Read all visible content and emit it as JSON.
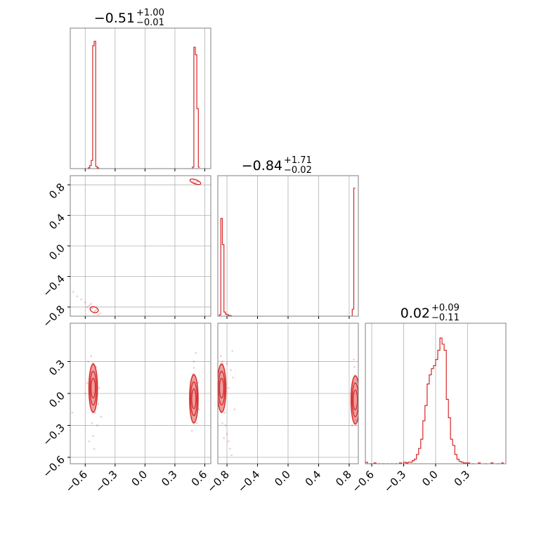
{
  "chart_data": {
    "type": "corner",
    "color": "#d62728",
    "grid": true,
    "params": [
      {
        "range": [
          -0.75,
          0.66
        ],
        "ticks": [
          -0.6,
          -0.3,
          0.0,
          0.3,
          0.6
        ],
        "tick_labels": [
          "−0.6",
          "−0.3",
          "0.0",
          "0.3",
          "0.6"
        ],
        "title": {
          "median": "−0.51",
          "plus": "+1.00",
          "minus": "−0.01"
        }
      },
      {
        "range": [
          -0.92,
          0.92
        ],
        "ticks": [
          -0.8,
          -0.4,
          0.0,
          0.4,
          0.8
        ],
        "tick_labels": [
          "−0.8",
          "−0.4",
          "0.0",
          "0.4",
          "0.8"
        ],
        "title": {
          "median": "−0.84",
          "plus": "+1.71",
          "minus": "−0.02"
        }
      },
      {
        "range": [
          -0.66,
          0.66
        ],
        "ticks": [
          -0.6,
          -0.3,
          0.0,
          0.3
        ],
        "tick_labels": [
          "−0.6",
          "−0.3",
          "0.0",
          "0.3"
        ],
        "title": {
          "median": "0.02",
          "plus": "+0.09",
          "minus": "−0.11"
        }
      }
    ],
    "histograms": [
      {
        "param": 0,
        "bins": [
          [
            -0.57,
            0.005
          ],
          [
            -0.555,
            0.02
          ],
          [
            -0.54,
            0.055
          ],
          [
            -0.525,
            0.82
          ],
          [
            -0.51,
            0.85
          ],
          [
            -0.495,
            0.015
          ],
          [
            -0.48,
            0.005
          ],
          [
            0.475,
            0.01
          ],
          [
            0.49,
            0.81
          ],
          [
            0.505,
            0.76
          ],
          [
            0.52,
            0.4
          ],
          [
            0.535,
            0.01
          ]
        ],
        "bin_width": 0.015,
        "ymax": 0.9
      },
      {
        "param": 1,
        "bins": [
          [
            -0.9,
            0.01
          ],
          [
            -0.88,
            0.71
          ],
          [
            -0.86,
            0.52
          ],
          [
            -0.84,
            0.03
          ],
          [
            -0.82,
            0.015
          ],
          [
            -0.8,
            0.01
          ],
          [
            -0.78,
            0.005
          ],
          [
            -0.76,
            0.003
          ],
          [
            0.84,
            0.05
          ],
          [
            0.86,
            0.93
          ]
        ],
        "bin_width": 0.02,
        "ymax": 0.98
      },
      {
        "param": 2,
        "bins": [
          [
            -0.66,
            0.01
          ],
          [
            -0.62,
            0.0
          ],
          [
            -0.58,
            0.005
          ],
          [
            -0.54,
            0.0
          ],
          [
            -0.5,
            0.0
          ],
          [
            -0.46,
            0.0
          ],
          [
            -0.42,
            0.0
          ],
          [
            -0.38,
            0.0
          ],
          [
            -0.34,
            0.005
          ],
          [
            -0.3,
            0.01
          ],
          [
            -0.28,
            0.005
          ],
          [
            -0.26,
            0.01
          ],
          [
            -0.24,
            0.01
          ],
          [
            -0.22,
            0.02
          ],
          [
            -0.2,
            0.03
          ],
          [
            -0.18,
            0.06
          ],
          [
            -0.16,
            0.1
          ],
          [
            -0.14,
            0.16
          ],
          [
            -0.12,
            0.28
          ],
          [
            -0.1,
            0.38
          ],
          [
            -0.08,
            0.52
          ],
          [
            -0.06,
            0.58
          ],
          [
            -0.04,
            0.62
          ],
          [
            -0.02,
            0.64
          ],
          [
            0.0,
            0.68
          ],
          [
            0.02,
            0.74
          ],
          [
            0.04,
            0.82
          ],
          [
            0.06,
            0.78
          ],
          [
            0.08,
            0.74
          ],
          [
            0.1,
            0.42
          ],
          [
            0.12,
            0.3
          ],
          [
            0.14,
            0.16
          ],
          [
            0.16,
            0.12
          ],
          [
            0.18,
            0.06
          ],
          [
            0.2,
            0.03
          ],
          [
            0.22,
            0.015
          ],
          [
            0.24,
            0.01
          ],
          [
            0.26,
            0.005
          ],
          [
            0.28,
            0.005
          ],
          [
            0.3,
            0.005
          ],
          [
            0.34,
            0.0
          ],
          [
            0.4,
            0.005
          ],
          [
            0.46,
            0.0
          ],
          [
            0.52,
            0.005
          ],
          [
            0.58,
            0.0
          ],
          [
            0.62,
            0.005
          ]
        ],
        "bin_width": 0.02,
        "ymax": 0.88
      }
    ],
    "scatter_2d": [
      {
        "x_param": 0,
        "y_param": 1,
        "points": [
          [
            0.48,
            0.84
          ],
          [
            0.5,
            0.83
          ],
          [
            0.52,
            0.85
          ],
          [
            0.49,
            0.86
          ],
          [
            0.51,
            0.82
          ],
          [
            0.53,
            0.84
          ],
          [
            -0.52,
            -0.8
          ],
          [
            -0.5,
            -0.85
          ],
          [
            -0.53,
            -0.82
          ],
          [
            -0.49,
            -0.84
          ],
          [
            -0.51,
            -0.87
          ],
          [
            -0.56,
            -0.78
          ],
          [
            -0.6,
            -0.74
          ],
          [
            -0.64,
            -0.7
          ],
          [
            -0.68,
            -0.66
          ],
          [
            -0.72,
            -0.6
          ],
          [
            -0.45,
            -0.88
          ],
          [
            -0.47,
            -0.9
          ],
          [
            -0.58,
            -0.8
          ],
          [
            -0.54,
            -0.76
          ]
        ]
      },
      {
        "x_param": 0,
        "y_param": 2,
        "points": [
          [
            -0.53,
            0.2
          ],
          [
            -0.52,
            0.28
          ],
          [
            -0.54,
            0.35
          ],
          [
            -0.51,
            0.12
          ],
          [
            -0.55,
            -0.05
          ],
          [
            -0.5,
            -0.18
          ],
          [
            -0.53,
            -0.28
          ],
          [
            -0.52,
            -0.4
          ],
          [
            -0.56,
            -0.45
          ],
          [
            -0.48,
            -0.3
          ],
          [
            -0.58,
            0.1
          ],
          [
            -0.49,
            0.25
          ],
          [
            -0.47,
            -0.1
          ],
          [
            -0.6,
            0.0
          ],
          [
            -0.44,
            -0.22
          ],
          [
            -0.57,
            0.3
          ],
          [
            -0.46,
            0.05
          ],
          [
            -0.51,
            -0.52
          ],
          [
            -0.73,
            -0.18
          ],
          [
            0.49,
            0.3
          ],
          [
            0.51,
            0.38
          ],
          [
            0.48,
            0.18
          ],
          [
            0.52,
            -0.28
          ],
          [
            0.5,
            -0.2
          ],
          [
            0.47,
            -0.35
          ],
          [
            0.53,
            0.1
          ],
          [
            0.46,
            -0.05
          ],
          [
            0.54,
            -0.15
          ],
          [
            0.49,
            0.24
          ]
        ],
        "contour_centers": [
          [
            -0.52,
            0.05
          ],
          [
            0.49,
            -0.05
          ]
        ]
      },
      {
        "x_param": 1,
        "y_param": 2,
        "points": [
          [
            -0.87,
            0.2
          ],
          [
            -0.86,
            0.3
          ],
          [
            -0.88,
            0.35
          ],
          [
            -0.85,
            0.12
          ],
          [
            -0.89,
            -0.08
          ],
          [
            -0.83,
            -0.18
          ],
          [
            -0.86,
            -0.28
          ],
          [
            -0.84,
            -0.42
          ],
          [
            -0.82,
            -0.3
          ],
          [
            -0.8,
            -0.38
          ],
          [
            -0.78,
            -0.45
          ],
          [
            -0.76,
            -0.52
          ],
          [
            -0.74,
            -0.58
          ],
          [
            -0.72,
            0.15
          ],
          [
            -0.75,
            0.22
          ],
          [
            -0.8,
            0.28
          ],
          [
            -0.73,
            0.4
          ],
          [
            -0.78,
            0.05
          ],
          [
            -0.7,
            -0.15
          ],
          [
            0.86,
            0.32
          ],
          [
            0.87,
            0.25
          ],
          [
            0.85,
            0.1
          ],
          [
            0.88,
            -0.25
          ],
          [
            0.86,
            -0.15
          ],
          [
            0.84,
            -0.3
          ]
        ],
        "contour_centers": [
          [
            -0.87,
            0.05
          ],
          [
            0.88,
            -0.06
          ]
        ]
      }
    ]
  }
}
